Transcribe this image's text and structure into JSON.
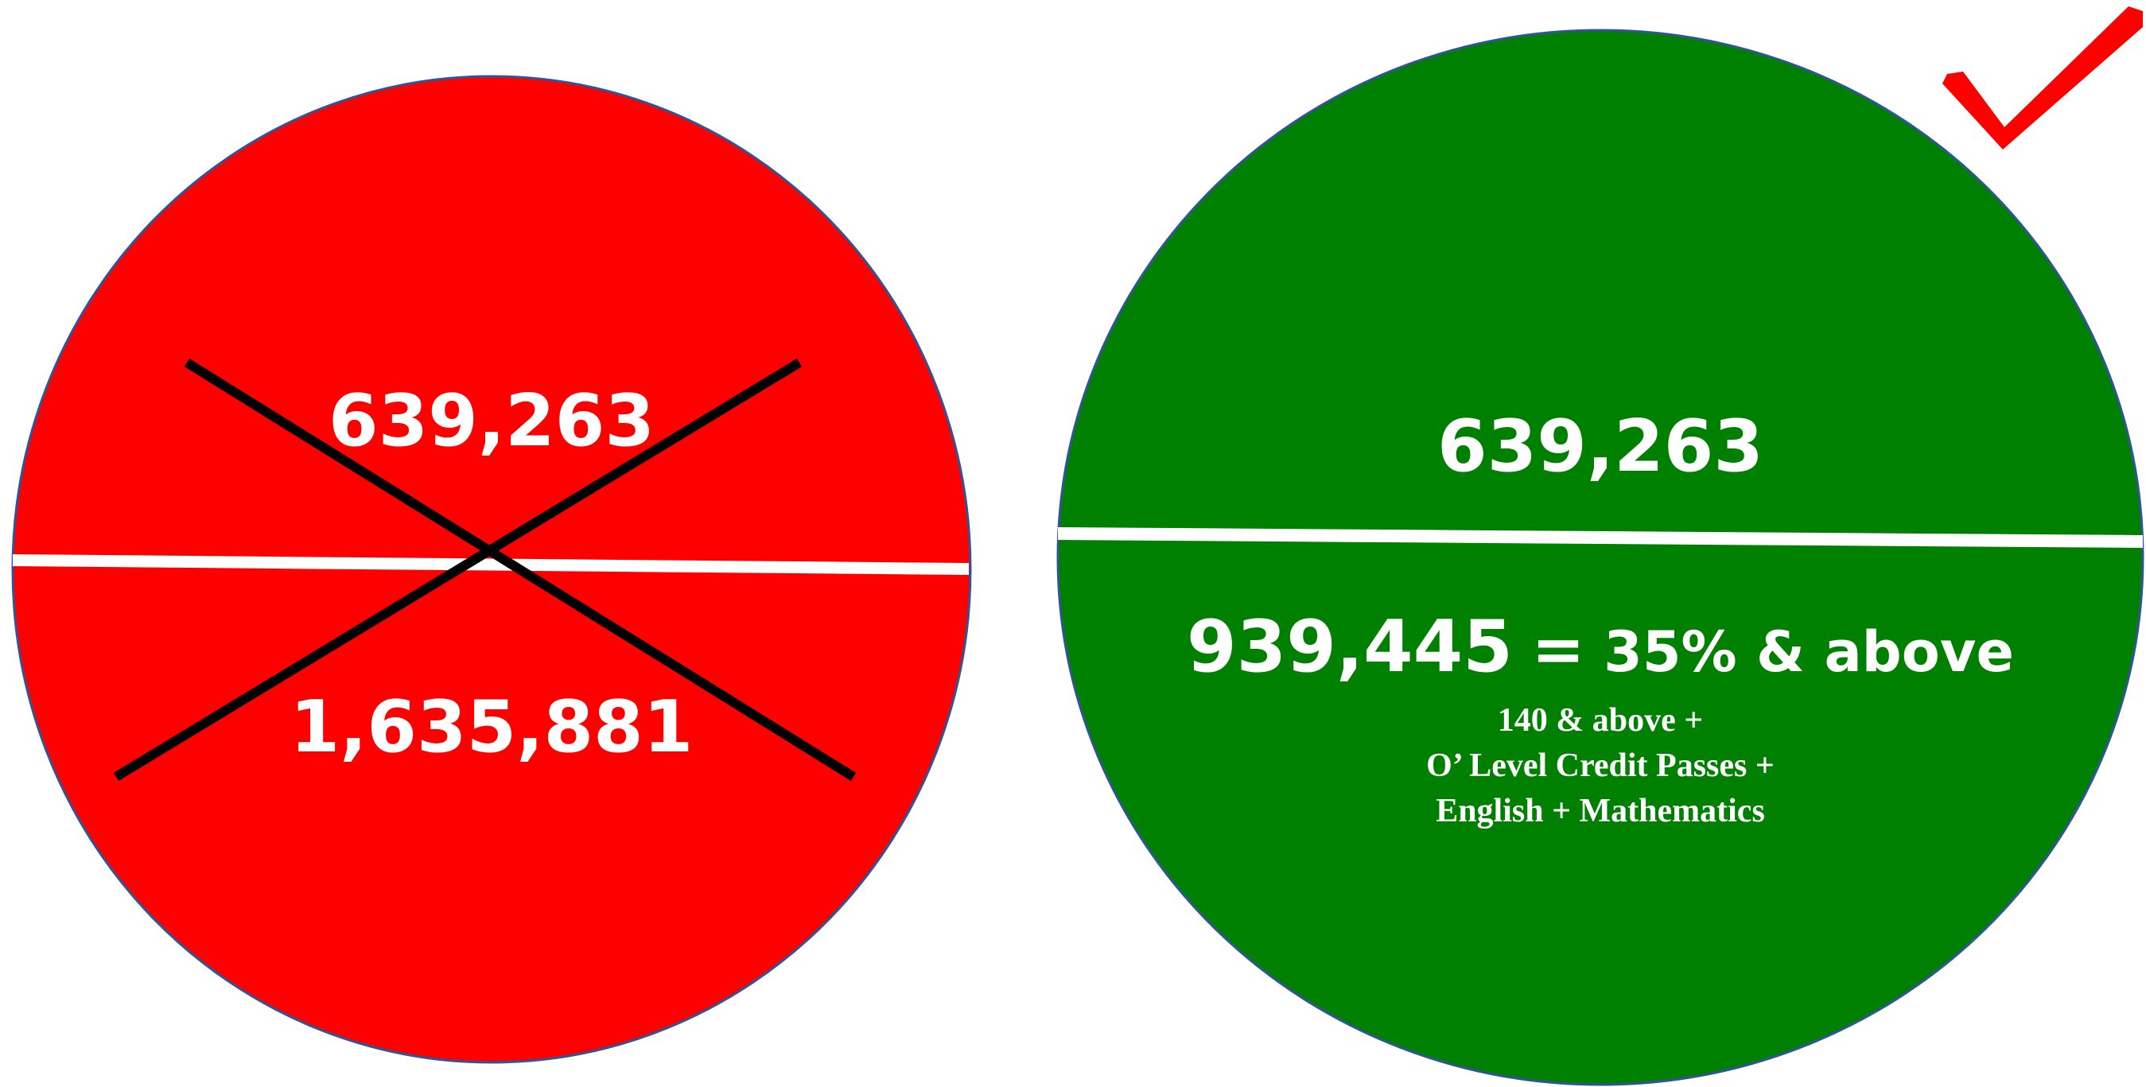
{
  "colors": {
    "rejected_circle": "#ff0000",
    "accepted_circle": "#008000",
    "circle_outline": "#2f5597",
    "divider": "#ffffff",
    "cross": "#000000",
    "checkmark": "#ff0000",
    "text": "#ffffff"
  },
  "left_circle": {
    "state": "rejected",
    "top_value": "639,263",
    "bottom_value": "1,635,881",
    "mark_icon": "cross-icon"
  },
  "right_circle": {
    "state": "accepted",
    "top_value": "639,263",
    "bottom_value": "939,445",
    "equals": "=",
    "bottom_description": "35% & above",
    "criteria": [
      "140 & above +",
      "O’ Level Credit Passes +",
      "English + Mathematics"
    ],
    "mark_icon": "checkmark-icon"
  }
}
